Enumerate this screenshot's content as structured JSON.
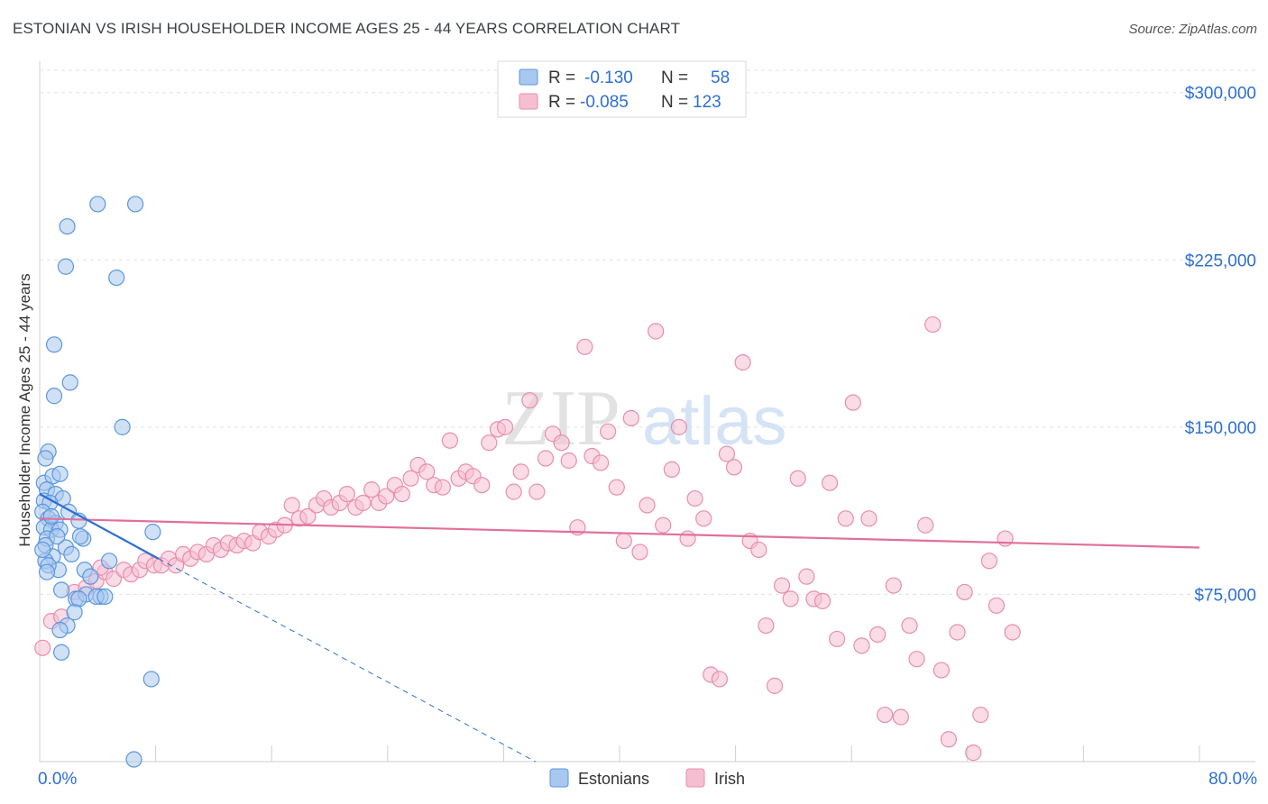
{
  "header": {
    "title": "ESTONIAN VS IRISH HOUSEHOLDER INCOME AGES 25 - 44 YEARS CORRELATION CHART",
    "source": "Source: ZipAtlas.com"
  },
  "watermark": {
    "zip": "ZIP",
    "atlas": "atlas"
  },
  "legend_top": {
    "rows": [
      {
        "r_label": "R =",
        "r_value": "-0.130",
        "n_label": "N =",
        "n_value": "58",
        "color": "#4a90d9"
      },
      {
        "r_label": "R =",
        "r_value": "-0.085",
        "n_label": "N =",
        "n_value": "123",
        "color": "#e57399"
      }
    ]
  },
  "legend_bottom": [
    {
      "label": "Estonians",
      "color": "#4a90d9"
    },
    {
      "label": "Irish",
      "color": "#e57399"
    }
  ],
  "colors": {
    "blue_fill": "#a9c8ef",
    "blue_stroke": "#5b97dd",
    "blue_line": "#2d6fd1",
    "pink_fill": "#f6bfd1",
    "pink_stroke": "#e88eac",
    "pink_line": "#e0709a",
    "axis_label": "#2d6fd1"
  },
  "chart_data": {
    "type": "scatter",
    "ylabel": "Householder Income Ages 25 - 44 years",
    "xlim": [
      0,
      80
    ],
    "ylim": [
      0,
      310000
    ],
    "x_tick_labels": [
      {
        "value": 0,
        "label": "0.0%"
      },
      {
        "value": 80,
        "label": "80.0%"
      }
    ],
    "y_tick_labels": [
      {
        "value": 75000,
        "label": "$75,000"
      },
      {
        "value": 150000,
        "label": "$150,000"
      },
      {
        "value": 225000,
        "label": "$225,000"
      },
      {
        "value": 300000,
        "label": "$300,000"
      }
    ],
    "grid": true,
    "series": [
      {
        "name": "Estonians",
        "trend": {
          "solid": [
            [
              0,
              120000
            ],
            [
              8.2,
              91000
            ]
          ],
          "dashed": [
            [
              8.2,
              91000
            ],
            [
              34.2,
              0
            ]
          ]
        },
        "points": [
          [
            4.0,
            250000
          ],
          [
            1.9,
            240000
          ],
          [
            6.6,
            250000
          ],
          [
            1.8,
            222000
          ],
          [
            5.3,
            217000
          ],
          [
            1.0,
            187000
          ],
          [
            2.1,
            170000
          ],
          [
            1.0,
            164000
          ],
          [
            5.7,
            150000
          ],
          [
            0.6,
            139000
          ],
          [
            0.4,
            136000
          ],
          [
            0.3,
            125000
          ],
          [
            0.9,
            128000
          ],
          [
            1.4,
            129000
          ],
          [
            0.5,
            122000
          ],
          [
            1.1,
            120000
          ],
          [
            0.3,
            117000
          ],
          [
            1.6,
            118000
          ],
          [
            0.7,
            116000
          ],
          [
            0.2,
            112000
          ],
          [
            2.0,
            112000
          ],
          [
            0.6,
            109000
          ],
          [
            1.1,
            107000
          ],
          [
            0.3,
            105000
          ],
          [
            0.8,
            104000
          ],
          [
            1.4,
            104000
          ],
          [
            2.7,
            108000
          ],
          [
            7.8,
            103000
          ],
          [
            3.0,
            100000
          ],
          [
            0.5,
            100000
          ],
          [
            0.4,
            97000
          ],
          [
            1.8,
            96000
          ],
          [
            2.8,
            101000
          ],
          [
            0.9,
            92000
          ],
          [
            0.4,
            90000
          ],
          [
            1.3,
            86000
          ],
          [
            3.1,
            86000
          ],
          [
            0.6,
            88000
          ],
          [
            1.5,
            77000
          ],
          [
            2.5,
            73000
          ],
          [
            3.2,
            75000
          ],
          [
            4.2,
            74000
          ],
          [
            2.7,
            73000
          ],
          [
            3.9,
            74000
          ],
          [
            4.5,
            74000
          ],
          [
            2.4,
            67000
          ],
          [
            1.9,
            61000
          ],
          [
            1.4,
            59000
          ],
          [
            1.5,
            49000
          ],
          [
            7.7,
            37000
          ],
          [
            6.5,
            1000
          ],
          [
            0.2,
            95000
          ],
          [
            0.8,
            110000
          ],
          [
            2.2,
            93000
          ],
          [
            1.2,
            101000
          ],
          [
            0.5,
            85000
          ],
          [
            3.5,
            83000
          ],
          [
            4.8,
            90000
          ]
        ]
      },
      {
        "name": "Irish",
        "trend": {
          "solid": [
            [
              0,
              109000
            ],
            [
              80,
              96000
            ]
          ]
        },
        "points": [
          [
            0.2,
            51000
          ],
          [
            0.8,
            63000
          ],
          [
            1.5,
            65000
          ],
          [
            2.4,
            76000
          ],
          [
            3.2,
            78000
          ],
          [
            3.9,
            81000
          ],
          [
            4.5,
            85000
          ],
          [
            5.1,
            82000
          ],
          [
            5.8,
            86000
          ],
          [
            6.3,
            84000
          ],
          [
            6.9,
            86000
          ],
          [
            7.3,
            90000
          ],
          [
            7.9,
            88000
          ],
          [
            8.4,
            88000
          ],
          [
            8.9,
            91000
          ],
          [
            9.4,
            88000
          ],
          [
            9.9,
            93000
          ],
          [
            10.4,
            91000
          ],
          [
            10.9,
            94000
          ],
          [
            11.5,
            93000
          ],
          [
            12.0,
            97000
          ],
          [
            12.5,
            95000
          ],
          [
            13.0,
            98000
          ],
          [
            13.6,
            97000
          ],
          [
            14.1,
            99000
          ],
          [
            14.7,
            98000
          ],
          [
            15.2,
            103000
          ],
          [
            15.8,
            101000
          ],
          [
            16.3,
            104000
          ],
          [
            16.9,
            106000
          ],
          [
            17.4,
            115000
          ],
          [
            17.9,
            109000
          ],
          [
            18.5,
            110000
          ],
          [
            19.1,
            115000
          ],
          [
            19.6,
            118000
          ],
          [
            20.1,
            114000
          ],
          [
            20.7,
            116000
          ],
          [
            21.2,
            120000
          ],
          [
            21.8,
            114000
          ],
          [
            22.3,
            116000
          ],
          [
            22.9,
            122000
          ],
          [
            23.4,
            116000
          ],
          [
            23.9,
            119000
          ],
          [
            24.5,
            124000
          ],
          [
            25.0,
            120000
          ],
          [
            25.6,
            127000
          ],
          [
            26.1,
            133000
          ],
          [
            26.7,
            130000
          ],
          [
            27.2,
            124000
          ],
          [
            27.8,
            123000
          ],
          [
            28.3,
            144000
          ],
          [
            28.9,
            127000
          ],
          [
            29.4,
            130000
          ],
          [
            29.9,
            128000
          ],
          [
            30.5,
            124000
          ],
          [
            31.0,
            143000
          ],
          [
            31.6,
            149000
          ],
          [
            32.1,
            150000
          ],
          [
            32.7,
            121000
          ],
          [
            33.2,
            130000
          ],
          [
            33.8,
            162000
          ],
          [
            34.3,
            121000
          ],
          [
            34.9,
            136000
          ],
          [
            35.4,
            147000
          ],
          [
            36.0,
            143000
          ],
          [
            36.5,
            135000
          ],
          [
            37.1,
            105000
          ],
          [
            37.6,
            186000
          ],
          [
            38.1,
            137000
          ],
          [
            38.7,
            134000
          ],
          [
            39.2,
            148000
          ],
          [
            39.8,
            123000
          ],
          [
            40.3,
            99000
          ],
          [
            40.8,
            154000
          ],
          [
            41.4,
            94000
          ],
          [
            41.9,
            115000
          ],
          [
            42.5,
            193000
          ],
          [
            43.0,
            106000
          ],
          [
            43.6,
            131000
          ],
          [
            44.1,
            150000
          ],
          [
            44.7,
            100000
          ],
          [
            45.2,
            118000
          ],
          [
            45.8,
            109000
          ],
          [
            46.3,
            39000
          ],
          [
            46.9,
            37000
          ],
          [
            47.4,
            138000
          ],
          [
            47.9,
            132000
          ],
          [
            48.5,
            179000
          ],
          [
            49.0,
            99000
          ],
          [
            49.6,
            95000
          ],
          [
            50.1,
            61000
          ],
          [
            50.7,
            34000
          ],
          [
            51.2,
            79000
          ],
          [
            51.8,
            73000
          ],
          [
            52.3,
            127000
          ],
          [
            52.9,
            83000
          ],
          [
            53.4,
            73000
          ],
          [
            54.0,
            72000
          ],
          [
            54.5,
            125000
          ],
          [
            55.0,
            55000
          ],
          [
            55.6,
            109000
          ],
          [
            56.1,
            161000
          ],
          [
            56.7,
            52000
          ],
          [
            57.2,
            109000
          ],
          [
            57.8,
            57000
          ],
          [
            58.3,
            21000
          ],
          [
            58.9,
            79000
          ],
          [
            59.4,
            20000
          ],
          [
            60.0,
            61000
          ],
          [
            60.5,
            46000
          ],
          [
            61.1,
            106000
          ],
          [
            61.6,
            196000
          ],
          [
            62.2,
            41000
          ],
          [
            62.7,
            10000
          ],
          [
            63.3,
            58000
          ],
          [
            63.8,
            76000
          ],
          [
            64.4,
            4000
          ],
          [
            64.9,
            21000
          ],
          [
            65.5,
            90000
          ],
          [
            66.0,
            70000
          ],
          [
            66.6,
            100000
          ],
          [
            67.1,
            58000
          ],
          [
            4.2,
            87000
          ]
        ]
      }
    ]
  }
}
